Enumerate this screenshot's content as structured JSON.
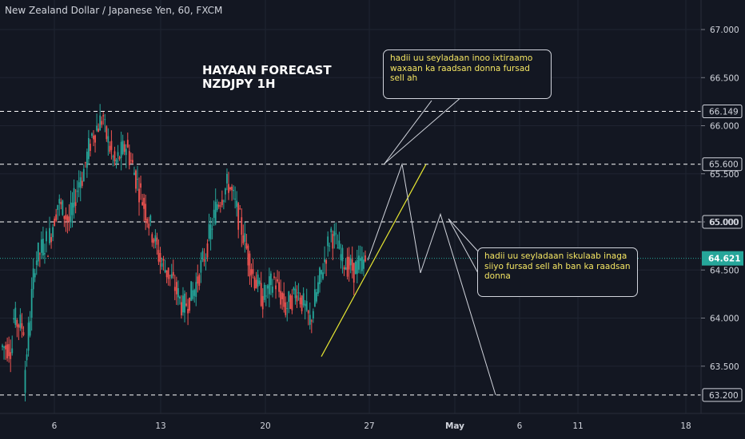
{
  "symbol_title": "New Zealand Dollar / Japanese Yen, 60, FXCM",
  "forecast_title": [
    "HAYAAN FORECAST",
    "NZDJPY 1H"
  ],
  "annotations": [
    "hadii uu seyladaan inoo ixtiraamo waxaan ka raadsan donna fursad sell ah",
    "hadii uu seyladaan iskulaab inaga siiyo fursad sell ah ban ka raadsan donna"
  ],
  "colors": {
    "background": "#131722",
    "grid": "#1f2431",
    "bull_candle": "#26a69a",
    "bear_candle": "#ef5350",
    "trendline": "#e6e632",
    "level_line": "#ffffff",
    "current_price": "#26a69a",
    "path": "#d1d4dc"
  },
  "chart_data": {
    "type": "candlestick",
    "instrument": "NZDJPY",
    "timeframe": "60",
    "source": "FXCM",
    "y_range": [
      63.1,
      67.2
    ],
    "y_ticks": [
      "67.000",
      "66.500",
      "66.000",
      "65.500",
      "65.000",
      "64.500",
      "64.000",
      "63.500"
    ],
    "x_ticks": [
      "6",
      "13",
      "20",
      "27",
      "May",
      "6",
      "11",
      "18"
    ],
    "levels": [
      66.149,
      65.6,
      65.0,
      63.2
    ],
    "level_labels": [
      "66.149",
      "65.600",
      "65.000",
      "63.200"
    ],
    "current_price": 64.621,
    "current_price_label": "64.621",
    "price_path": [
      [
        63.7,
        63.7
      ],
      [
        64.0,
        63.9
      ],
      [
        63.3,
        64.6
      ],
      [
        64.6,
        64.8
      ],
      [
        64.7,
        65.2
      ],
      [
        65.2,
        65.0
      ],
      [
        65.0,
        65.5
      ],
      [
        65.4,
        65.9
      ],
      [
        65.9,
        66.1
      ],
      [
        66.0,
        65.6
      ],
      [
        65.6,
        65.8
      ],
      [
        65.8,
        65.4
      ],
      [
        65.4,
        65.0
      ],
      [
        65.0,
        64.6
      ],
      [
        64.6,
        64.4
      ],
      [
        64.4,
        64.1
      ],
      [
        64.1,
        64.3
      ],
      [
        64.3,
        64.7
      ],
      [
        64.7,
        65.2
      ],
      [
        65.2,
        65.4
      ],
      [
        65.4,
        65.0
      ],
      [
        65.0,
        64.5
      ],
      [
        64.5,
        64.2
      ],
      [
        64.2,
        64.4
      ],
      [
        64.4,
        64.1
      ],
      [
        64.1,
        64.3
      ],
      [
        64.3,
        64.0
      ],
      [
        63.9,
        64.4
      ],
      [
        64.4,
        64.9
      ],
      [
        64.9,
        64.6
      ],
      [
        64.6,
        64.5
      ],
      [
        64.5,
        64.6
      ]
    ],
    "trendline": [
      [
        63.6
      ],
      [
        65.6
      ]
    ],
    "projection": [
      64.6,
      65.6,
      64.47,
      65.08,
      63.2
    ]
  }
}
